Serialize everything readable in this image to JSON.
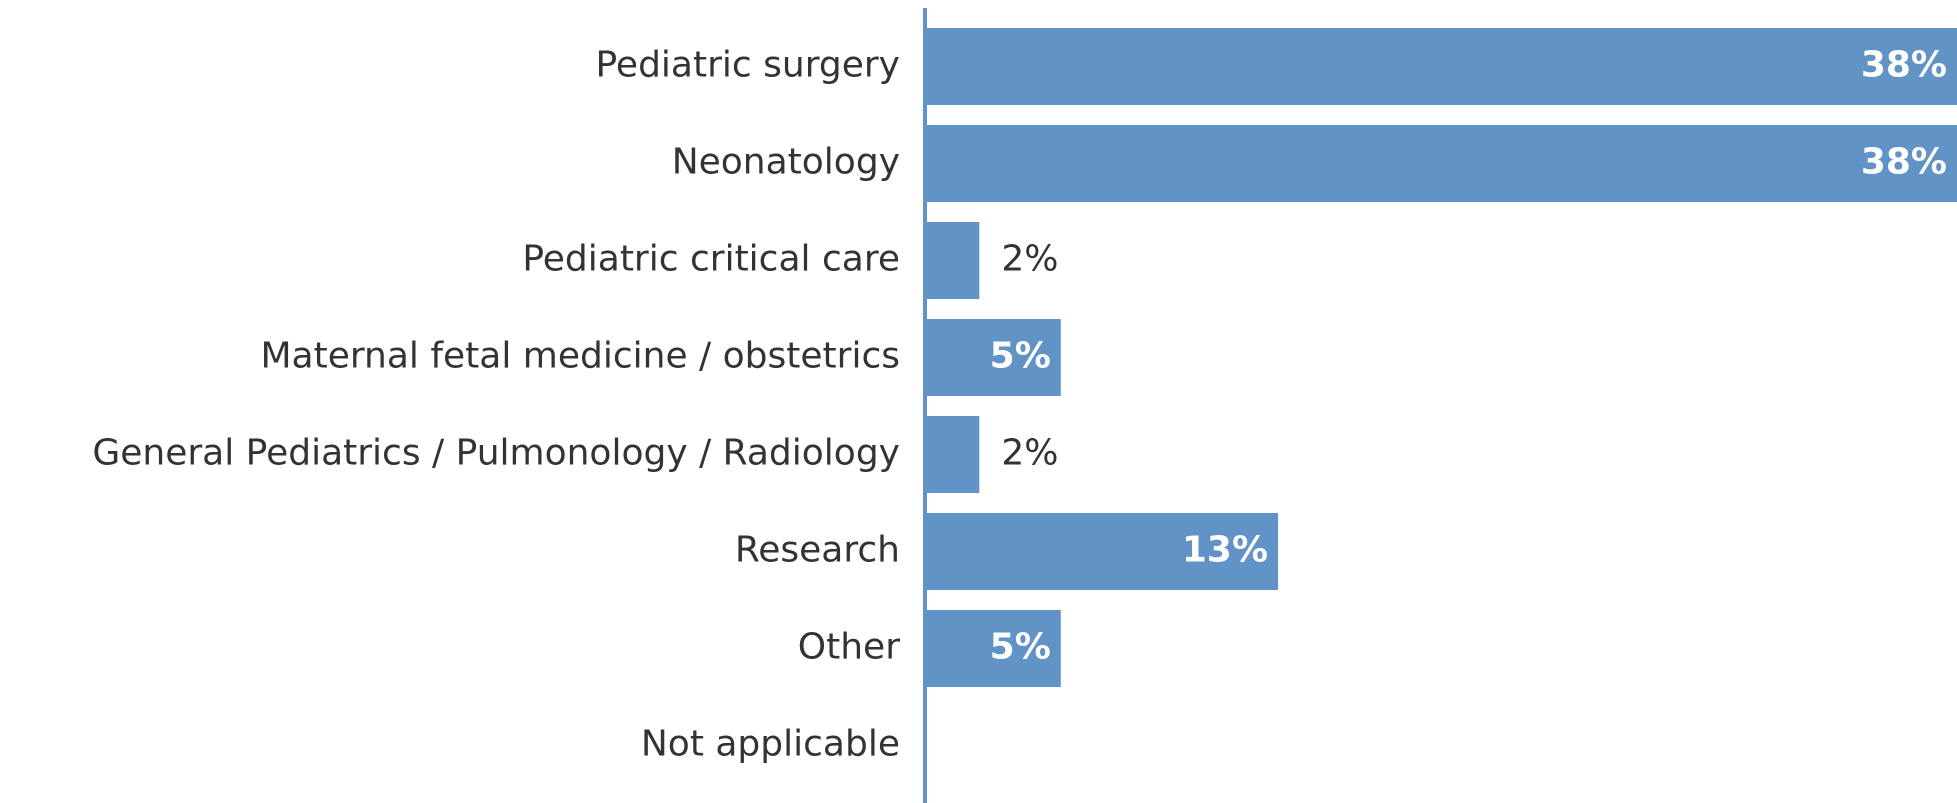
{
  "chart_data": {
    "type": "hbar",
    "categories": [
      "Pediatric surgery",
      "Neonatology",
      "Pediatric critical care",
      "Maternal fetal medicine / obstetrics",
      "General Pediatrics / Pulmonology / Radiology",
      "Research",
      "Other",
      "Not applicable"
    ],
    "values": [
      38,
      38,
      2,
      5,
      2,
      13,
      5,
      null
    ],
    "value_labels": [
      "38%",
      "38%",
      "2%",
      "5%",
      "2%",
      "13%",
      "5%",
      null
    ],
    "color": "#6193c6",
    "xlim": [
      0,
      38
    ]
  }
}
